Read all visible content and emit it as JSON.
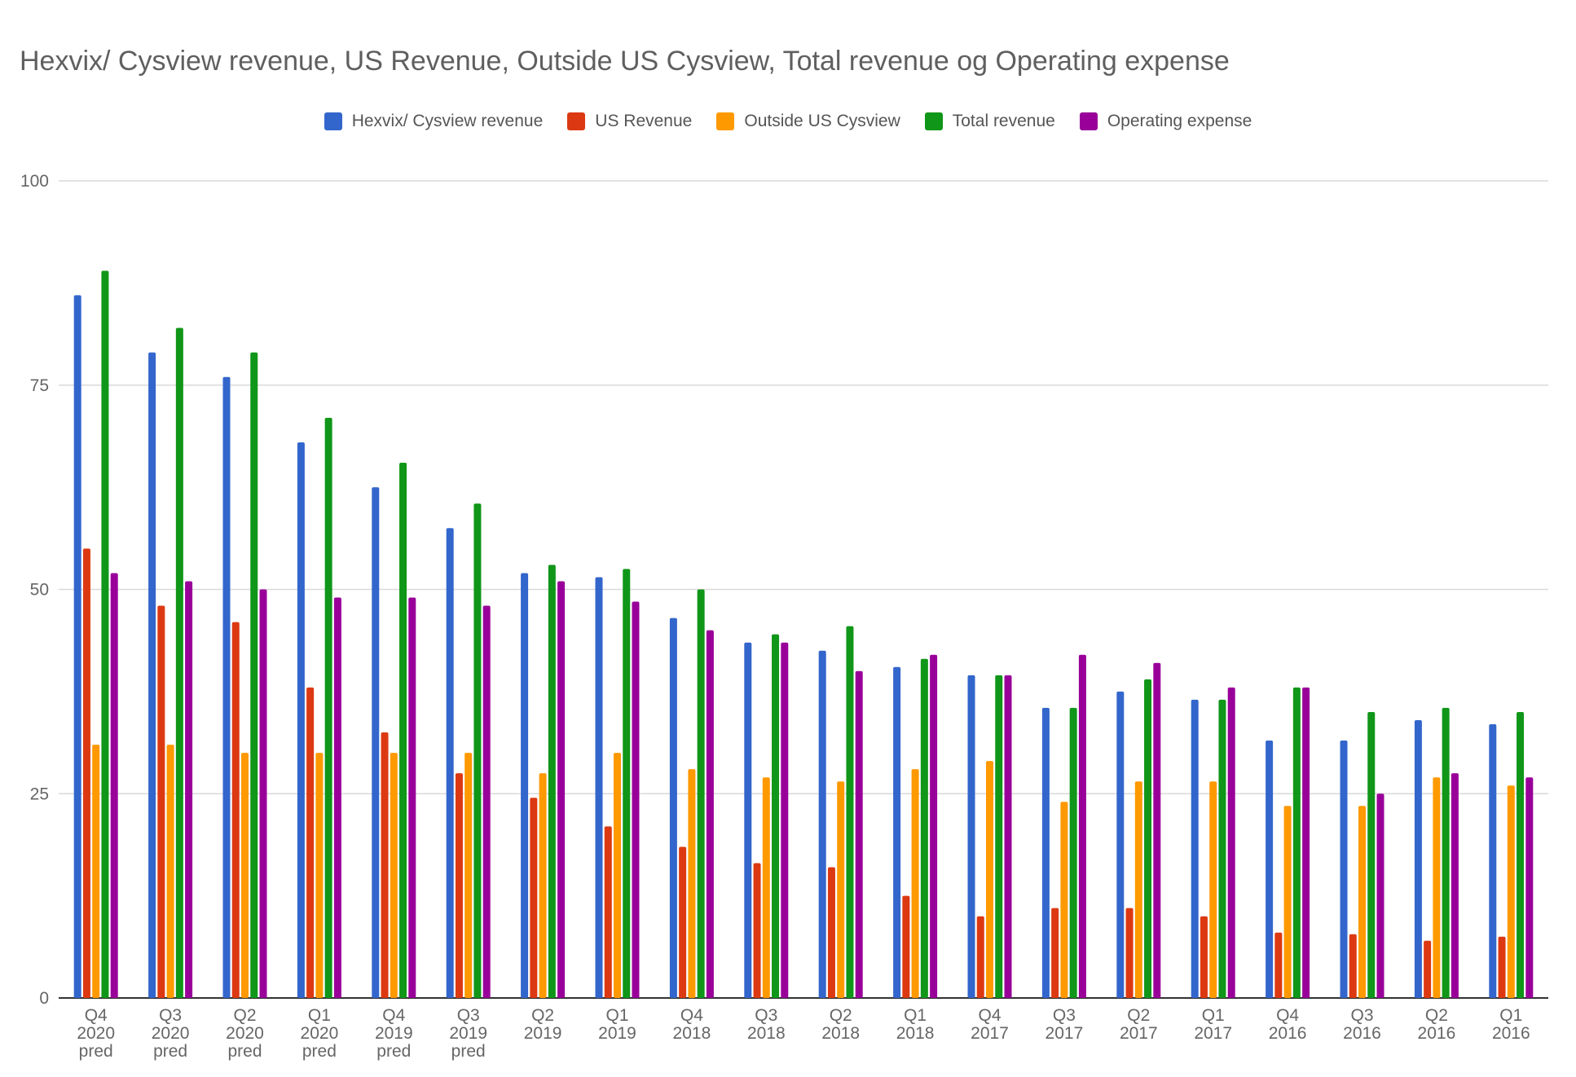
{
  "chart_data": {
    "type": "bar",
    "title": "Hexvix/ Cysview revenue, US Revenue, Outside US Cysview, Total revenue og Operating expense",
    "xlabel": "",
    "ylabel": "",
    "ylim": [
      0,
      100
    ],
    "yticks": [
      "0",
      "25",
      "50",
      "75",
      "100"
    ],
    "grid": true,
    "legend_position": "top",
    "categories": [
      [
        "Q4",
        "2020",
        "pred"
      ],
      [
        "Q3",
        "2020",
        "pred"
      ],
      [
        "Q2",
        "2020",
        "pred"
      ],
      [
        "Q1",
        "2020",
        "pred"
      ],
      [
        "Q4",
        "2019",
        "pred"
      ],
      [
        "Q3",
        "2019",
        "pred"
      ],
      [
        "Q2",
        "2019"
      ],
      [
        "Q1",
        "2019"
      ],
      [
        "Q4",
        "2018"
      ],
      [
        "Q3",
        "2018"
      ],
      [
        "Q2",
        "2018"
      ],
      [
        "Q1",
        "2018"
      ],
      [
        "Q4",
        "2017"
      ],
      [
        "Q3",
        "2017"
      ],
      [
        "Q2",
        "2017"
      ],
      [
        "Q1",
        "2017"
      ],
      [
        "Q4",
        "2016"
      ],
      [
        "Q3",
        "2016"
      ],
      [
        "Q2",
        "2016"
      ],
      [
        "Q1",
        "2016"
      ]
    ],
    "series": [
      {
        "name": "Hexvix/ Cysview revenue",
        "color": "#3366cc",
        "values": [
          86,
          79,
          76,
          68,
          62.5,
          57.5,
          52,
          51.5,
          46.5,
          43.5,
          42.5,
          40.5,
          39.5,
          35.5,
          37.5,
          36.5,
          31.5,
          31.5,
          34,
          33.5
        ]
      },
      {
        "name": "US Revenue",
        "color": "#dc3912",
        "values": [
          55,
          48,
          46,
          38,
          32.5,
          27.5,
          24.5,
          21,
          18.5,
          16.5,
          16,
          12.5,
          10,
          11,
          11,
          10,
          8,
          7.8,
          7,
          7.5
        ]
      },
      {
        "name": "Outside US Cysview",
        "color": "#ff9900",
        "values": [
          31,
          31,
          30,
          30,
          30,
          30,
          27.5,
          30,
          28,
          27,
          26.5,
          28,
          29,
          24,
          26.5,
          26.5,
          23.5,
          23.5,
          27,
          26
        ]
      },
      {
        "name": "Total revenue",
        "color": "#109618",
        "values": [
          89,
          82,
          79,
          71,
          65.5,
          60.5,
          53,
          52.5,
          50,
          44.5,
          45.5,
          41.5,
          39.5,
          35.5,
          39,
          36.5,
          38,
          35,
          35.5,
          35
        ]
      },
      {
        "name": "Operating expense",
        "color": "#990099",
        "values": [
          52,
          51,
          50,
          49,
          49,
          48,
          51,
          48.5,
          45,
          43.5,
          40,
          42,
          39.5,
          42,
          41,
          38,
          38,
          25,
          27.5,
          27
        ]
      }
    ]
  }
}
